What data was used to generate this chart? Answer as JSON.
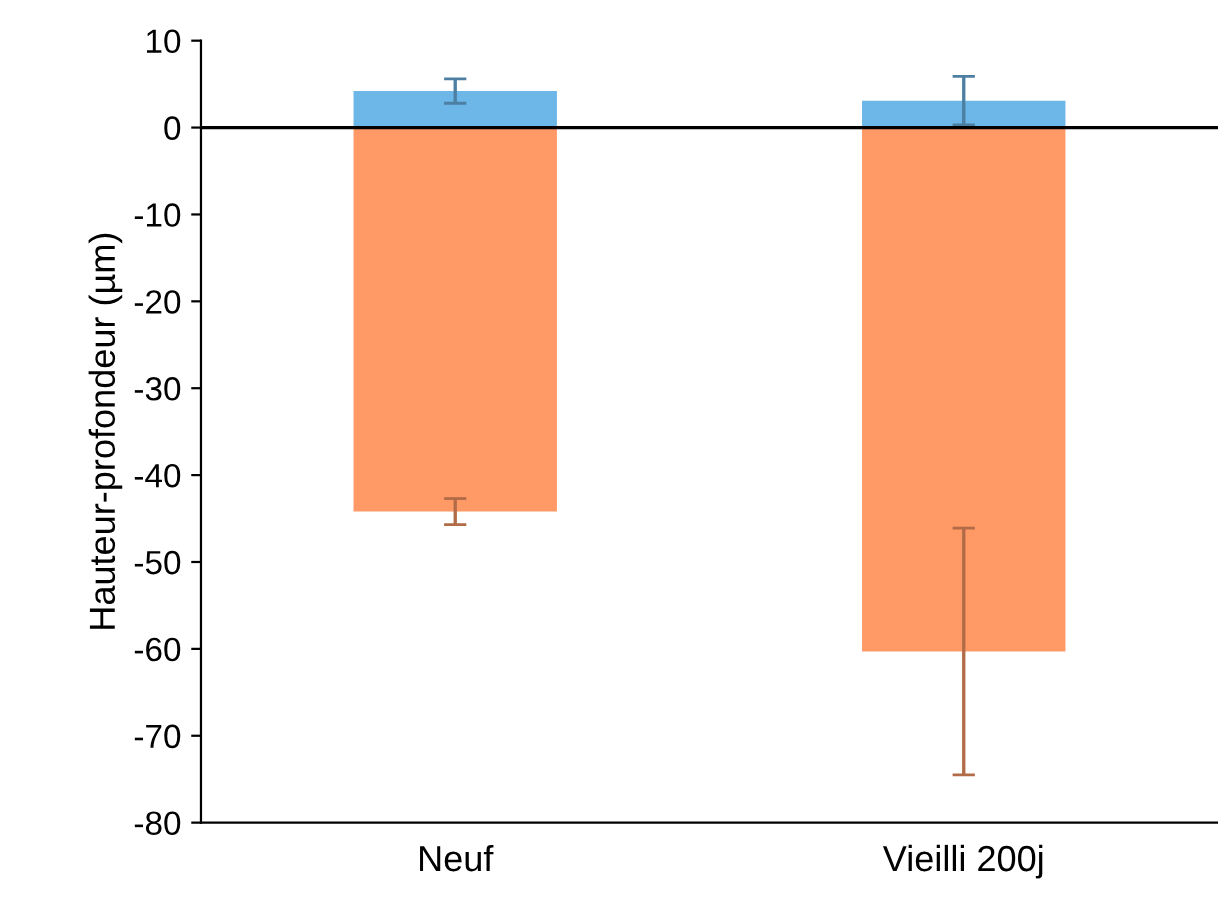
{
  "chart_data": {
    "type": "bar",
    "stacked": true,
    "ylabel": "Hauteur-profondeur (µm)",
    "categories": [
      "Neuf",
      "Vieilli 200j"
    ],
    "series": [
      {
        "color": "#6cb6e8",
        "values": [
          4.2,
          3.1
        ],
        "errors": [
          1.4,
          2.8
        ]
      },
      {
        "color": "#ff9966",
        "values": [
          -44.2,
          -60.3
        ],
        "errors": [
          1.5,
          14.2
        ]
      }
    ],
    "ylim": [
      -80,
      10
    ],
    "yticks": [
      -80,
      -70,
      -60,
      -50,
      -40,
      -30,
      -20,
      -10,
      0,
      10
    ],
    "grid": false,
    "ref_lines": [
      {
        "axis": "y",
        "value": 0,
        "color": "#000000"
      }
    ]
  }
}
